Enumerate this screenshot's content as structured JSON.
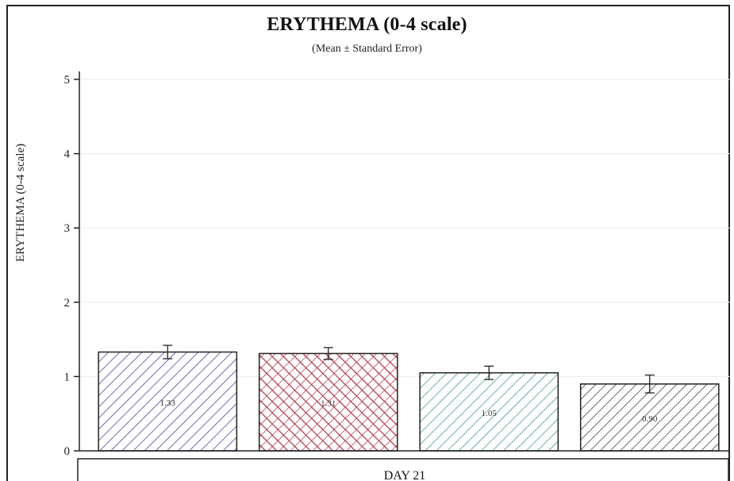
{
  "chart_data": {
    "type": "bar",
    "title": "ERYTHEMA (0-4 scale)",
    "subtitle": "(Mean ± Standard Error)",
    "xlabel": "",
    "ylabel": "ERYTHEMA (0-4 scale)",
    "ylim": [
      0,
      5
    ],
    "yticks": [
      "0",
      "1",
      "2",
      "3",
      "4",
      "5"
    ],
    "grid": true,
    "panel_label": "DAY 21",
    "bars": [
      {
        "value": 1.33,
        "label": "1.33",
        "error": 0.09,
        "color": "#2f2f9a",
        "fill": "#ffffff",
        "pattern": "diag-down"
      },
      {
        "value": 1.31,
        "label": "1.31",
        "error": 0.08,
        "color": "#b03040",
        "fill": "#ffffff",
        "pattern": "crosshatch"
      },
      {
        "value": 1.05,
        "label": "1.05",
        "error": 0.09,
        "color": "#2e8f8a",
        "fill": "#ffffff",
        "pattern": "diag-down"
      },
      {
        "value": 0.9,
        "label": "0.90",
        "error": 0.12,
        "color": "#3a2a1e",
        "fill": "#ffffff",
        "pattern": "diag-down-dense"
      }
    ]
  }
}
